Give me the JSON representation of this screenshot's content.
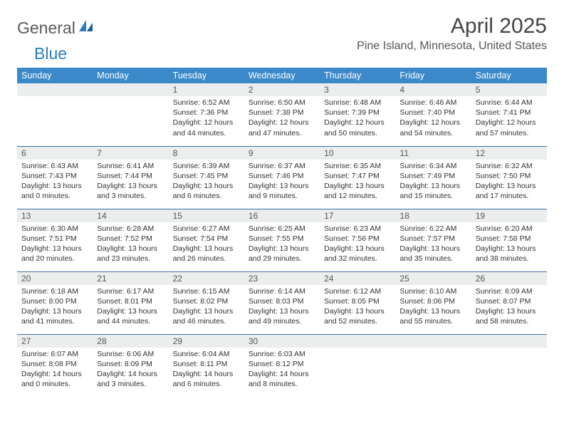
{
  "logo": {
    "text1": "General",
    "text2": "Blue"
  },
  "title": "April 2025",
  "location": "Pine Island, Minnesota, United States",
  "colors": {
    "header_bg": "#3b89c9",
    "header_text": "#ffffff",
    "daynum_bg": "#eceeee",
    "row_border": "#3b6fa0",
    "logo_blue": "#2b7bbf",
    "logo_gray": "#5a5a5a",
    "body_text": "#333333"
  },
  "typography": {
    "title_fontsize": 30,
    "location_fontsize": 16,
    "th_fontsize": 12.5,
    "daynum_fontsize": 12,
    "cell_fontsize": 10.5
  },
  "day_headers": [
    "Sunday",
    "Monday",
    "Tuesday",
    "Wednesday",
    "Thursday",
    "Friday",
    "Saturday"
  ],
  "weeks": [
    [
      {
        "day": "",
        "sunrise": "",
        "sunset": "",
        "daylight": ""
      },
      {
        "day": "",
        "sunrise": "",
        "sunset": "",
        "daylight": ""
      },
      {
        "day": "1",
        "sunrise": "Sunrise: 6:52 AM",
        "sunset": "Sunset: 7:36 PM",
        "daylight": "Daylight: 12 hours and 44 minutes."
      },
      {
        "day": "2",
        "sunrise": "Sunrise: 6:50 AM",
        "sunset": "Sunset: 7:38 PM",
        "daylight": "Daylight: 12 hours and 47 minutes."
      },
      {
        "day": "3",
        "sunrise": "Sunrise: 6:48 AM",
        "sunset": "Sunset: 7:39 PM",
        "daylight": "Daylight: 12 hours and 50 minutes."
      },
      {
        "day": "4",
        "sunrise": "Sunrise: 6:46 AM",
        "sunset": "Sunset: 7:40 PM",
        "daylight": "Daylight: 12 hours and 54 minutes."
      },
      {
        "day": "5",
        "sunrise": "Sunrise: 6:44 AM",
        "sunset": "Sunset: 7:41 PM",
        "daylight": "Daylight: 12 hours and 57 minutes."
      }
    ],
    [
      {
        "day": "6",
        "sunrise": "Sunrise: 6:43 AM",
        "sunset": "Sunset: 7:43 PM",
        "daylight": "Daylight: 13 hours and 0 minutes."
      },
      {
        "day": "7",
        "sunrise": "Sunrise: 6:41 AM",
        "sunset": "Sunset: 7:44 PM",
        "daylight": "Daylight: 13 hours and 3 minutes."
      },
      {
        "day": "8",
        "sunrise": "Sunrise: 6:39 AM",
        "sunset": "Sunset: 7:45 PM",
        "daylight": "Daylight: 13 hours and 6 minutes."
      },
      {
        "day": "9",
        "sunrise": "Sunrise: 6:37 AM",
        "sunset": "Sunset: 7:46 PM",
        "daylight": "Daylight: 13 hours and 9 minutes."
      },
      {
        "day": "10",
        "sunrise": "Sunrise: 6:35 AM",
        "sunset": "Sunset: 7:47 PM",
        "daylight": "Daylight: 13 hours and 12 minutes."
      },
      {
        "day": "11",
        "sunrise": "Sunrise: 6:34 AM",
        "sunset": "Sunset: 7:49 PM",
        "daylight": "Daylight: 13 hours and 15 minutes."
      },
      {
        "day": "12",
        "sunrise": "Sunrise: 6:32 AM",
        "sunset": "Sunset: 7:50 PM",
        "daylight": "Daylight: 13 hours and 17 minutes."
      }
    ],
    [
      {
        "day": "13",
        "sunrise": "Sunrise: 6:30 AM",
        "sunset": "Sunset: 7:51 PM",
        "daylight": "Daylight: 13 hours and 20 minutes."
      },
      {
        "day": "14",
        "sunrise": "Sunrise: 6:28 AM",
        "sunset": "Sunset: 7:52 PM",
        "daylight": "Daylight: 13 hours and 23 minutes."
      },
      {
        "day": "15",
        "sunrise": "Sunrise: 6:27 AM",
        "sunset": "Sunset: 7:54 PM",
        "daylight": "Daylight: 13 hours and 26 minutes."
      },
      {
        "day": "16",
        "sunrise": "Sunrise: 6:25 AM",
        "sunset": "Sunset: 7:55 PM",
        "daylight": "Daylight: 13 hours and 29 minutes."
      },
      {
        "day": "17",
        "sunrise": "Sunrise: 6:23 AM",
        "sunset": "Sunset: 7:56 PM",
        "daylight": "Daylight: 13 hours and 32 minutes."
      },
      {
        "day": "18",
        "sunrise": "Sunrise: 6:22 AM",
        "sunset": "Sunset: 7:57 PM",
        "daylight": "Daylight: 13 hours and 35 minutes."
      },
      {
        "day": "19",
        "sunrise": "Sunrise: 6:20 AM",
        "sunset": "Sunset: 7:58 PM",
        "daylight": "Daylight: 13 hours and 38 minutes."
      }
    ],
    [
      {
        "day": "20",
        "sunrise": "Sunrise: 6:18 AM",
        "sunset": "Sunset: 8:00 PM",
        "daylight": "Daylight: 13 hours and 41 minutes."
      },
      {
        "day": "21",
        "sunrise": "Sunrise: 6:17 AM",
        "sunset": "Sunset: 8:01 PM",
        "daylight": "Daylight: 13 hours and 44 minutes."
      },
      {
        "day": "22",
        "sunrise": "Sunrise: 6:15 AM",
        "sunset": "Sunset: 8:02 PM",
        "daylight": "Daylight: 13 hours and 46 minutes."
      },
      {
        "day": "23",
        "sunrise": "Sunrise: 6:14 AM",
        "sunset": "Sunset: 8:03 PM",
        "daylight": "Daylight: 13 hours and 49 minutes."
      },
      {
        "day": "24",
        "sunrise": "Sunrise: 6:12 AM",
        "sunset": "Sunset: 8:05 PM",
        "daylight": "Daylight: 13 hours and 52 minutes."
      },
      {
        "day": "25",
        "sunrise": "Sunrise: 6:10 AM",
        "sunset": "Sunset: 8:06 PM",
        "daylight": "Daylight: 13 hours and 55 minutes."
      },
      {
        "day": "26",
        "sunrise": "Sunrise: 6:09 AM",
        "sunset": "Sunset: 8:07 PM",
        "daylight": "Daylight: 13 hours and 58 minutes."
      }
    ],
    [
      {
        "day": "27",
        "sunrise": "Sunrise: 6:07 AM",
        "sunset": "Sunset: 8:08 PM",
        "daylight": "Daylight: 14 hours and 0 minutes."
      },
      {
        "day": "28",
        "sunrise": "Sunrise: 6:06 AM",
        "sunset": "Sunset: 8:09 PM",
        "daylight": "Daylight: 14 hours and 3 minutes."
      },
      {
        "day": "29",
        "sunrise": "Sunrise: 6:04 AM",
        "sunset": "Sunset: 8:11 PM",
        "daylight": "Daylight: 14 hours and 6 minutes."
      },
      {
        "day": "30",
        "sunrise": "Sunrise: 6:03 AM",
        "sunset": "Sunset: 8:12 PM",
        "daylight": "Daylight: 14 hours and 8 minutes."
      },
      {
        "day": "",
        "sunrise": "",
        "sunset": "",
        "daylight": ""
      },
      {
        "day": "",
        "sunrise": "",
        "sunset": "",
        "daylight": ""
      },
      {
        "day": "",
        "sunrise": "",
        "sunset": "",
        "daylight": ""
      }
    ]
  ]
}
